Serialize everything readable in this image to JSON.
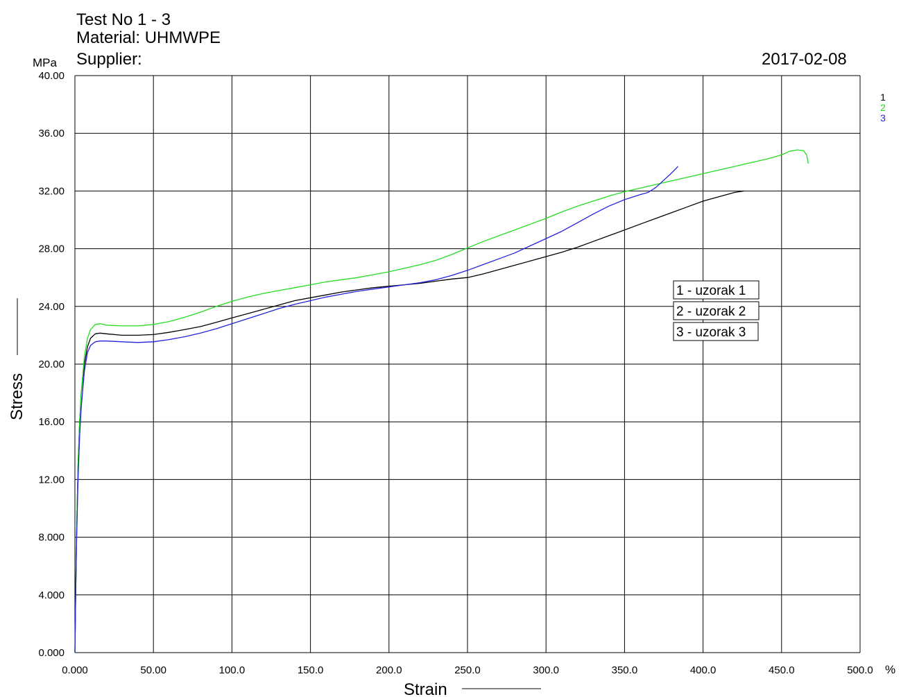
{
  "header": {
    "test_no": "Test No  1 - 3",
    "material": "Material: UHMWPE",
    "supplier": "Supplier:",
    "date": "2017-02-08"
  },
  "chart_data": {
    "type": "line",
    "xlabel": "Strain",
    "ylabel": "Stress",
    "xunit": "%",
    "yunit": "MPa",
    "xlim": [
      0,
      500
    ],
    "ylim": [
      0,
      40
    ],
    "grid": true,
    "x_ticks": [
      "0.000",
      "50.00",
      "100.0",
      "150.0",
      "200.0",
      "250.0",
      "300.0",
      "350.0",
      "400.0",
      "450.0",
      "500.0"
    ],
    "y_ticks": [
      "0.000",
      "4.000",
      "8.000",
      "12.00",
      "16.00",
      "20.00",
      "24.00",
      "28.00",
      "32.00",
      "36.00",
      "40.00"
    ],
    "legend": [
      "1 - uzorak 1",
      "2 - uzorak 2",
      "3 - uzorak 3"
    ],
    "series_index_labels": [
      "1",
      "2",
      "3"
    ],
    "series": [
      {
        "color": "#000000",
        "x": [
          0,
          0.5,
          1,
          2,
          3,
          4,
          6,
          8,
          10,
          13,
          16,
          20,
          30,
          40,
          50,
          60,
          70,
          80,
          90,
          100,
          110,
          120,
          130,
          140,
          150,
          160,
          170,
          180,
          190,
          200,
          210,
          220,
          230,
          240,
          250,
          260,
          270,
          280,
          290,
          300,
          310,
          320,
          330,
          340,
          350,
          360,
          370,
          380,
          390,
          400,
          410,
          420,
          426
        ],
        "y": [
          0,
          4,
          8,
          13,
          16,
          18,
          20,
          21.2,
          21.8,
          22.1,
          22.15,
          22.1,
          22.0,
          22.0,
          22.05,
          22.2,
          22.4,
          22.6,
          22.9,
          23.2,
          23.5,
          23.8,
          24.1,
          24.4,
          24.6,
          24.8,
          25.0,
          25.15,
          25.3,
          25.4,
          25.5,
          25.6,
          25.75,
          25.9,
          26.0,
          26.25,
          26.55,
          26.85,
          27.15,
          27.45,
          27.75,
          28.1,
          28.5,
          28.9,
          29.3,
          29.7,
          30.1,
          30.5,
          30.9,
          31.3,
          31.6,
          31.9,
          32.0
        ]
      },
      {
        "color": "#22dd22",
        "x": [
          0,
          0.5,
          1,
          2,
          3,
          4,
          6,
          8,
          10,
          13,
          16,
          20,
          30,
          40,
          50,
          60,
          70,
          80,
          90,
          100,
          110,
          120,
          130,
          140,
          150,
          160,
          170,
          180,
          190,
          200,
          210,
          220,
          230,
          240,
          250,
          260,
          270,
          280,
          290,
          300,
          310,
          320,
          330,
          340,
          350,
          360,
          370,
          380,
          390,
          400,
          410,
          420,
          430,
          440,
          450,
          455,
          460,
          464,
          466,
          467
        ],
        "y": [
          0,
          4,
          8,
          13,
          16,
          18,
          20.5,
          21.8,
          22.4,
          22.75,
          22.8,
          22.7,
          22.65,
          22.65,
          22.75,
          22.95,
          23.25,
          23.6,
          24.0,
          24.35,
          24.65,
          24.9,
          25.1,
          25.3,
          25.5,
          25.7,
          25.85,
          26.0,
          26.2,
          26.4,
          26.65,
          26.9,
          27.2,
          27.6,
          28.05,
          28.5,
          28.9,
          29.3,
          29.7,
          30.1,
          30.55,
          30.95,
          31.3,
          31.65,
          31.95,
          32.2,
          32.45,
          32.7,
          32.95,
          33.2,
          33.45,
          33.7,
          33.95,
          34.2,
          34.5,
          34.75,
          34.85,
          34.8,
          34.5,
          33.9
        ]
      },
      {
        "color": "#2222dd",
        "x": [
          0,
          0.5,
          1,
          2,
          3,
          4,
          6,
          8,
          10,
          13,
          16,
          20,
          30,
          40,
          50,
          60,
          70,
          80,
          90,
          100,
          110,
          120,
          130,
          140,
          150,
          160,
          170,
          180,
          190,
          200,
          210,
          220,
          230,
          240,
          250,
          260,
          270,
          280,
          290,
          300,
          310,
          320,
          330,
          340,
          350,
          360,
          365,
          370,
          375,
          380,
          384
        ],
        "y": [
          0,
          4,
          7.5,
          12,
          15,
          17,
          19.5,
          20.8,
          21.3,
          21.55,
          21.6,
          21.6,
          21.55,
          21.5,
          21.55,
          21.7,
          21.9,
          22.15,
          22.45,
          22.8,
          23.15,
          23.5,
          23.85,
          24.15,
          24.4,
          24.65,
          24.85,
          25.05,
          25.2,
          25.35,
          25.5,
          25.65,
          25.85,
          26.15,
          26.5,
          26.9,
          27.3,
          27.7,
          28.2,
          28.7,
          29.2,
          29.8,
          30.4,
          30.95,
          31.4,
          31.75,
          31.9,
          32.25,
          32.75,
          33.25,
          33.7
        ]
      }
    ]
  }
}
